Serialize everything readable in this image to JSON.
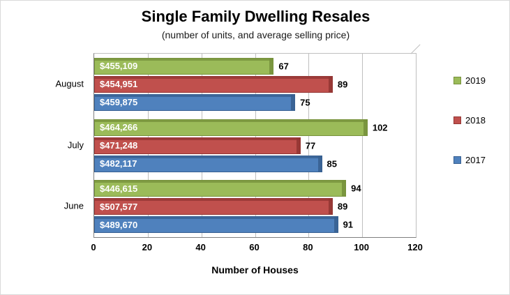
{
  "chart_data": {
    "type": "bar",
    "orientation": "horizontal",
    "title": "Single Family Dwelling Resales",
    "subtitle": "(number of units, and average selling price)",
    "xlabel": "Number of Houses",
    "categories": [
      "August",
      "July",
      "June"
    ],
    "series": [
      {
        "name": "2019",
        "color": "#9BBB59",
        "dark_color": "#77923C",
        "values": [
          67,
          102,
          94
        ],
        "price_labels": [
          "$455,109",
          "$464,266",
          "$446,615"
        ]
      },
      {
        "name": "2018",
        "color": "#C0504D",
        "dark_color": "#943634",
        "values": [
          89,
          77,
          89
        ],
        "price_labels": [
          "$454,951",
          "$471,248",
          "$507,577"
        ]
      },
      {
        "name": "2017",
        "color": "#4F81BD",
        "dark_color": "#376091",
        "values": [
          75,
          85,
          91
        ],
        "price_labels": [
          "$459,875",
          "$482,117",
          "$489,670"
        ]
      }
    ],
    "xlim": [
      0,
      120
    ],
    "xticks": [
      0,
      20,
      40,
      60,
      80,
      100,
      120
    ],
    "grid": true,
    "legend_position": "right"
  }
}
